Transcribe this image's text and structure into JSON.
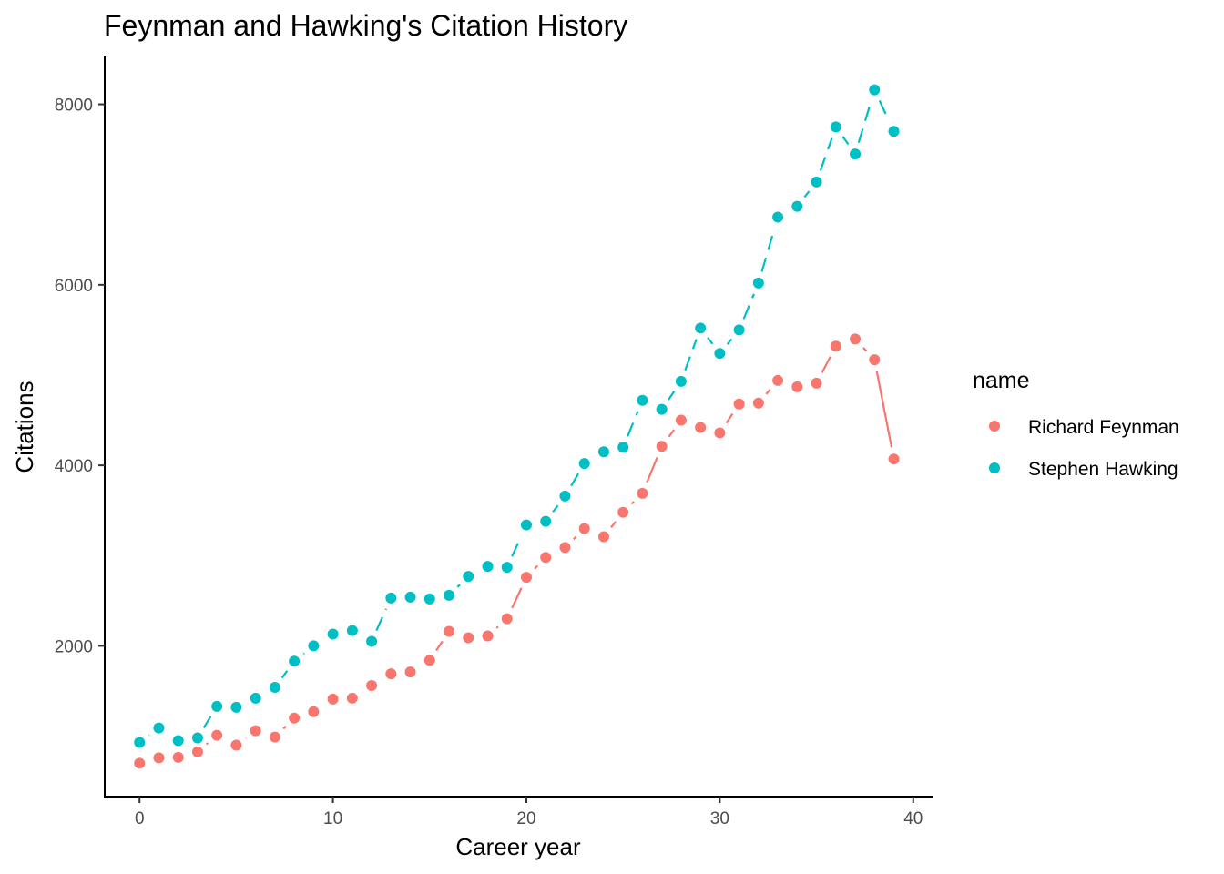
{
  "chart_data": {
    "type": "scatter",
    "title": "Feynman and Hawking's Citation History",
    "xlabel": "Career year",
    "ylabel": "Citations",
    "xlim": [
      -1.8,
      41
    ],
    "ylim": [
      330,
      8530
    ],
    "x_ticks": [
      0,
      10,
      20,
      30,
      40
    ],
    "y_ticks": [
      2000,
      4000,
      6000,
      8000
    ],
    "grid": false,
    "legend": {
      "title": "name",
      "position": "right"
    },
    "series": [
      {
        "name": "Richard Feynman",
        "color": "#F8766D",
        "line_style": "solid",
        "points": [
          [
            0,
            700
          ],
          [
            1,
            760
          ],
          [
            2,
            765
          ],
          [
            3,
            825
          ],
          [
            4,
            1010
          ],
          [
            5,
            900
          ],
          [
            6,
            1060
          ],
          [
            7,
            990
          ],
          [
            8,
            1200
          ],
          [
            9,
            1270
          ],
          [
            10,
            1410
          ],
          [
            11,
            1420
          ],
          [
            12,
            1560
          ],
          [
            13,
            1690
          ],
          [
            14,
            1710
          ],
          [
            15,
            1840
          ],
          [
            16,
            2160
          ],
          [
            17,
            2090
          ],
          [
            18,
            2110
          ],
          [
            19,
            2300
          ],
          [
            20,
            2760
          ],
          [
            21,
            2980
          ],
          [
            22,
            3090
          ],
          [
            23,
            3300
          ],
          [
            24,
            3210
          ],
          [
            25,
            3480
          ],
          [
            26,
            3690
          ],
          [
            27,
            4210
          ],
          [
            28,
            4500
          ],
          [
            29,
            4420
          ],
          [
            30,
            4360
          ],
          [
            31,
            4680
          ],
          [
            32,
            4690
          ],
          [
            33,
            4940
          ],
          [
            34,
            4870
          ],
          [
            35,
            4910
          ],
          [
            36,
            5320
          ],
          [
            37,
            5400
          ],
          [
            38,
            5170
          ],
          [
            39,
            4070
          ]
        ]
      },
      {
        "name": "Stephen Hawking",
        "color": "#00BFC4",
        "line_style": "dashed",
        "points": [
          [
            0,
            930
          ],
          [
            1,
            1090
          ],
          [
            2,
            950
          ],
          [
            3,
            980
          ],
          [
            4,
            1330
          ],
          [
            5,
            1320
          ],
          [
            6,
            1420
          ],
          [
            7,
            1540
          ],
          [
            8,
            1830
          ],
          [
            9,
            2000
          ],
          [
            10,
            2130
          ],
          [
            11,
            2170
          ],
          [
            12,
            2050
          ],
          [
            13,
            2530
          ],
          [
            14,
            2540
          ],
          [
            15,
            2520
          ],
          [
            16,
            2560
          ],
          [
            17,
            2770
          ],
          [
            18,
            2880
          ],
          [
            19,
            2870
          ],
          [
            20,
            3340
          ],
          [
            21,
            3380
          ],
          [
            22,
            3660
          ],
          [
            23,
            4020
          ],
          [
            24,
            4150
          ],
          [
            25,
            4200
          ],
          [
            26,
            4720
          ],
          [
            27,
            4620
          ],
          [
            28,
            4930
          ],
          [
            29,
            5520
          ],
          [
            30,
            5240
          ],
          [
            31,
            5500
          ],
          [
            32,
            6020
          ],
          [
            33,
            6750
          ],
          [
            34,
            6870
          ],
          [
            35,
            7140
          ],
          [
            36,
            7750
          ],
          [
            37,
            7450
          ],
          [
            38,
            8160
          ],
          [
            39,
            7700
          ]
        ]
      }
    ]
  }
}
